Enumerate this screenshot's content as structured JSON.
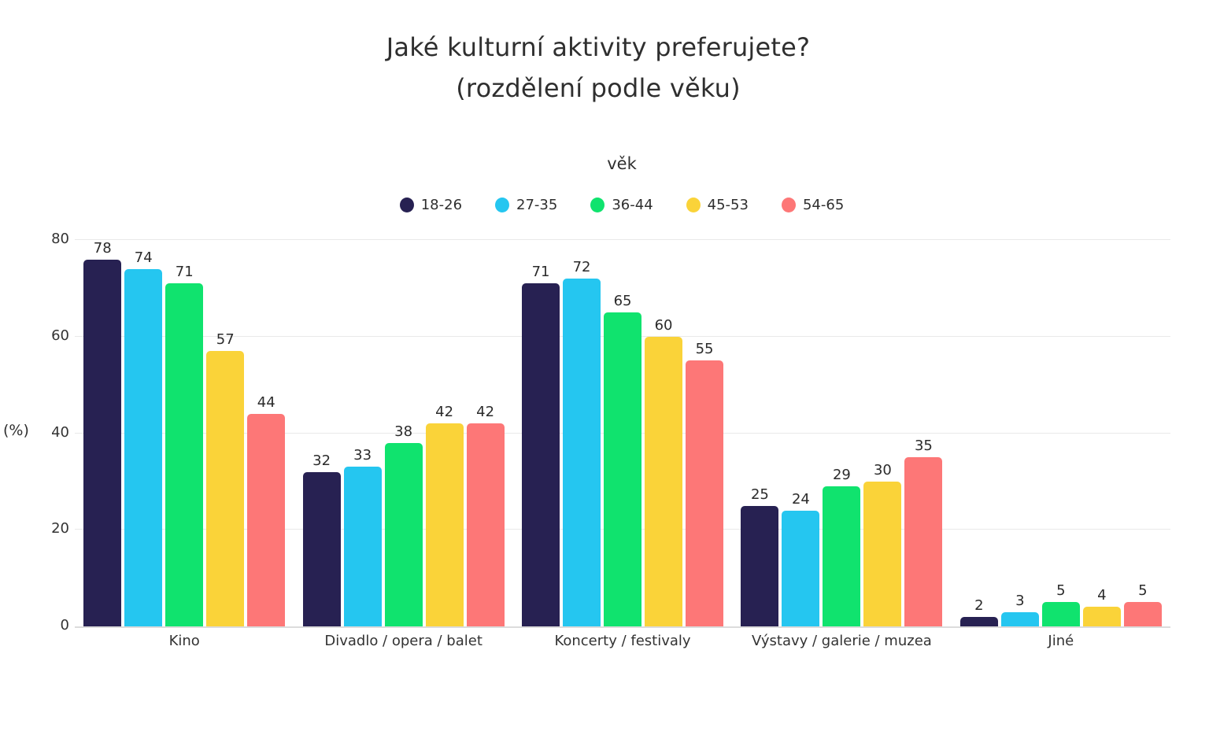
{
  "title": {
    "line1": "Jaké kulturní aktivity preferujete?",
    "line2": "(rozdělení podle věku)"
  },
  "legend": {
    "title": "věk"
  },
  "axes": {
    "ylabel": "(%)"
  },
  "chart_data": {
    "type": "bar",
    "title": "Jaké kulturní aktivity preferujete? (rozdělení podle věku)",
    "legend_title": "věk",
    "legend_position": "top",
    "xlabel": "",
    "ylabel": "(%)",
    "ylim": [
      0,
      80
    ],
    "yticks": [
      0,
      20,
      40,
      60,
      80
    ],
    "grid": true,
    "value_labels": true,
    "categories": [
      "Kino",
      "Divadlo / opera / balet",
      "Koncerty / festivaly",
      "Výstavy / galerie / muzea",
      "Jiné"
    ],
    "series": [
      {
        "name": "18-26",
        "color": "#272152",
        "values": [
          78,
          32,
          71,
          25,
          2
        ]
      },
      {
        "name": "27-35",
        "color": "#25C6F0",
        "values": [
          74,
          33,
          72,
          24,
          3
        ]
      },
      {
        "name": "36-44",
        "color": "#10E36E",
        "values": [
          71,
          38,
          65,
          29,
          5
        ]
      },
      {
        "name": "45-53",
        "color": "#FAD339",
        "values": [
          57,
          42,
          60,
          30,
          4
        ]
      },
      {
        "name": "54-65",
        "color": "#FD7777",
        "values": [
          44,
          42,
          55,
          35,
          5
        ]
      }
    ]
  }
}
